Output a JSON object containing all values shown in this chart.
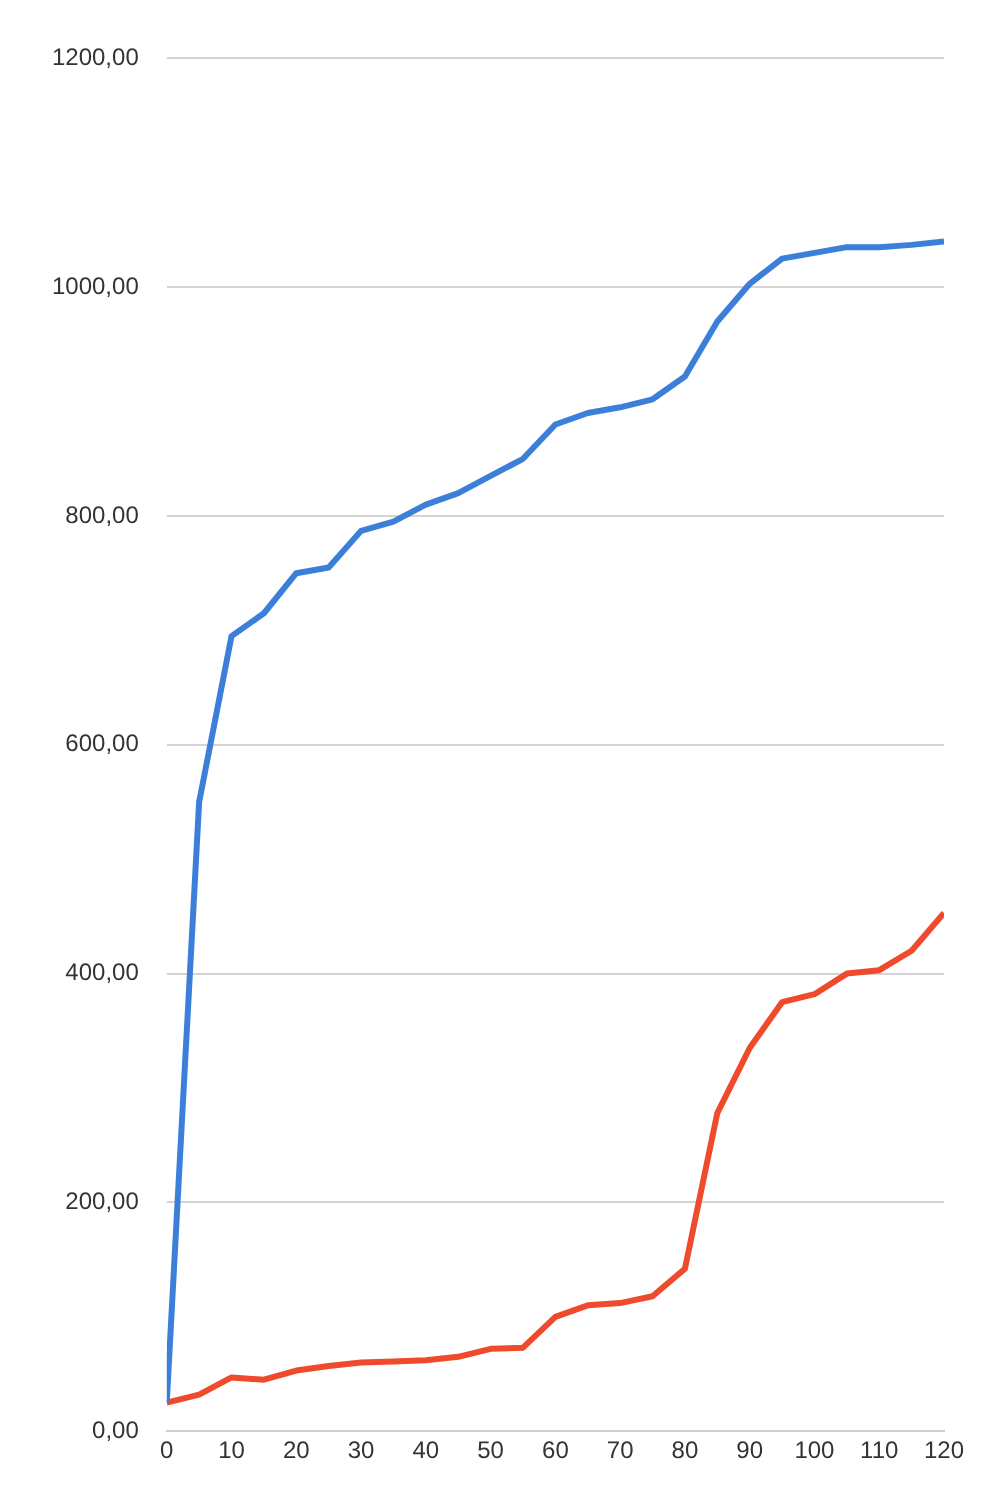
{
  "chart_data": {
    "type": "line",
    "x": [
      0,
      5,
      10,
      15,
      20,
      25,
      30,
      35,
      40,
      45,
      50,
      55,
      60,
      65,
      70,
      75,
      80,
      85,
      90,
      95,
      100,
      105,
      110,
      115,
      120
    ],
    "series": [
      {
        "color": "#3c7fd8",
        "values": [
          25,
          550,
          695,
          715,
          750,
          755,
          787,
          795,
          810,
          820,
          835,
          850,
          880,
          890,
          895,
          902,
          922,
          970,
          1003,
          1025,
          1030,
          1035,
          1035,
          1037,
          1040
        ]
      },
      {
        "color": "#f04a2c",
        "values": [
          25,
          32,
          47,
          45,
          53,
          57,
          60,
          61,
          62,
          65,
          72,
          73,
          100,
          110,
          112,
          118,
          142,
          278,
          335,
          375,
          382,
          400,
          403,
          420,
          453
        ]
      }
    ],
    "xlim": [
      0,
      120
    ],
    "xticks": [
      0,
      10,
      20,
      30,
      40,
      50,
      60,
      70,
      80,
      90,
      100,
      110,
      120
    ],
    "ylim": [
      0,
      1200
    ],
    "yticks": [
      {
        "value": 0,
        "label": "0,00"
      },
      {
        "value": 200,
        "label": "200,00"
      },
      {
        "value": 400,
        "label": "400,00"
      },
      {
        "value": 600,
        "label": "600,00"
      },
      {
        "value": 800,
        "label": "800,00"
      },
      {
        "value": 1000,
        "label": "1000,00"
      },
      {
        "value": 1200,
        "label": "1200,00"
      }
    ],
    "grid": "y",
    "legend": false,
    "marker": "none",
    "line_style": "solid"
  }
}
